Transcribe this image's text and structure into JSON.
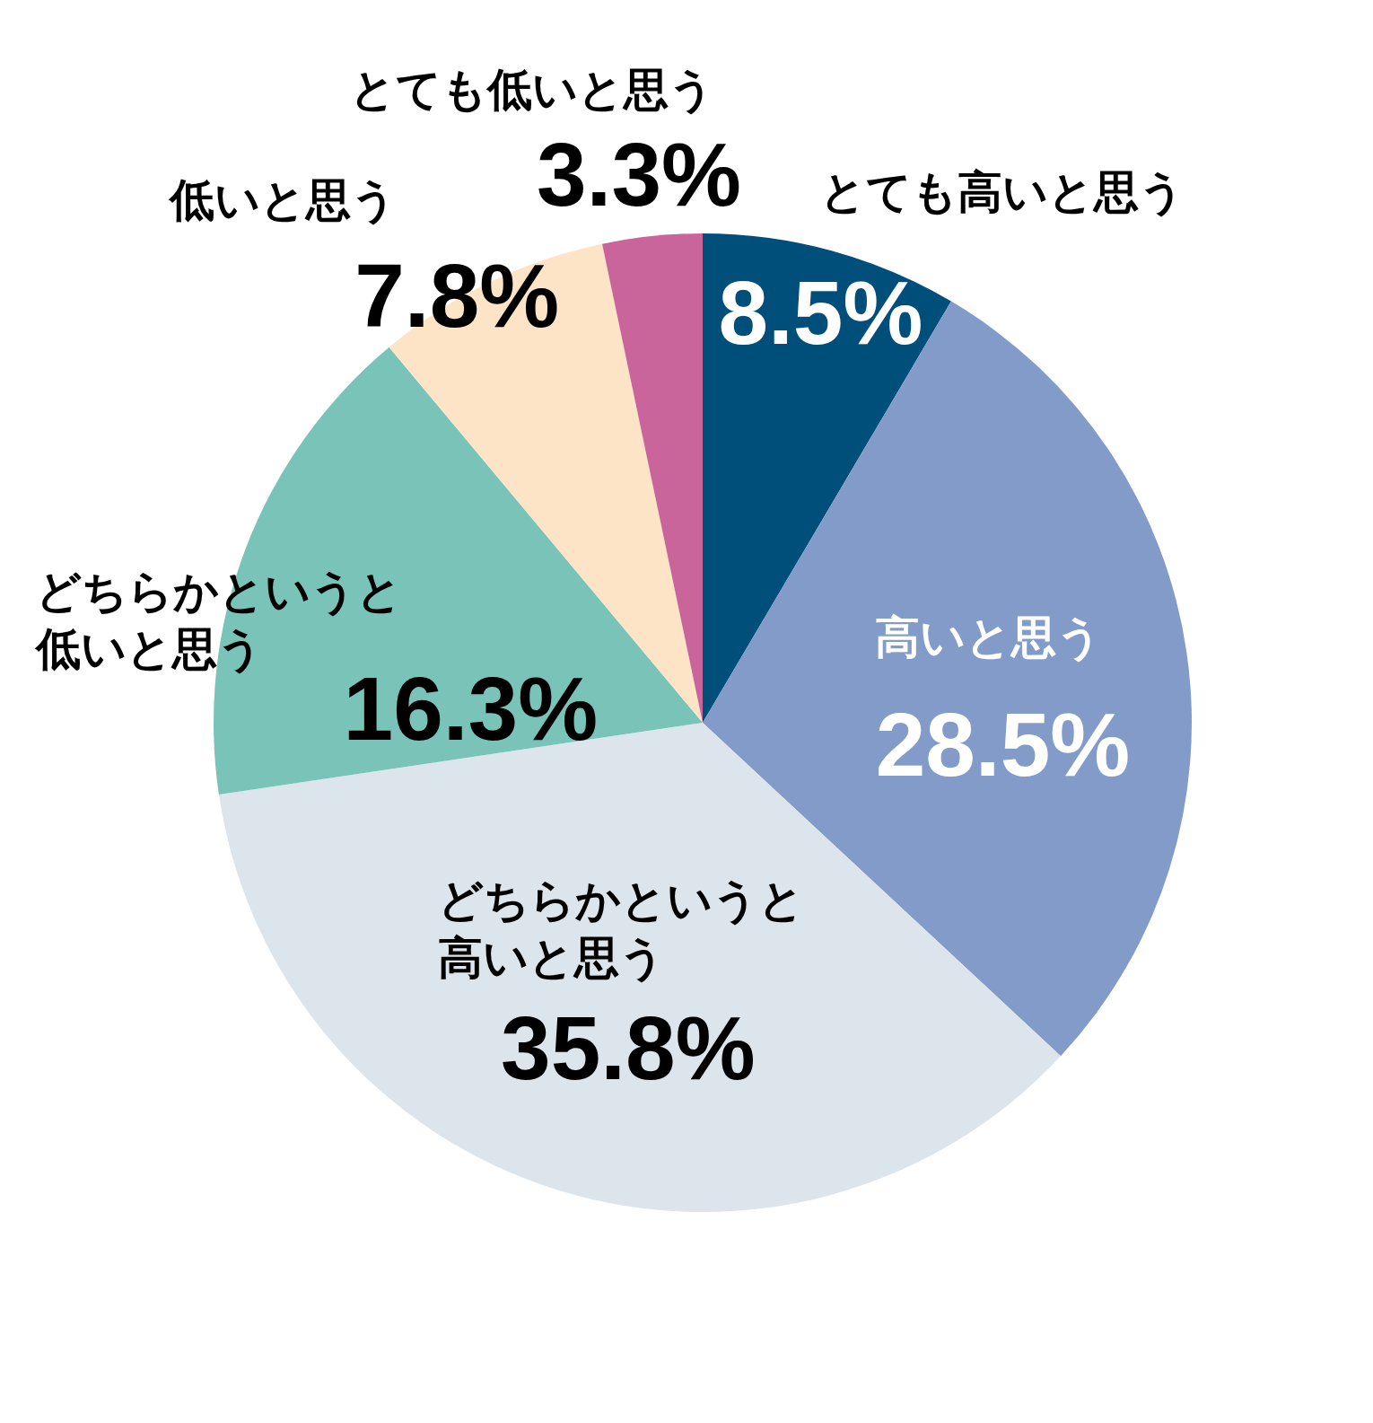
{
  "chart_data": {
    "type": "pie",
    "categories": [
      "とても高いと思う",
      "高いと思う",
      "どちらかというと高いと思う",
      "どちらかというと低いと思う",
      "低いと思う",
      "とても低いと思う"
    ],
    "values": [
      8.5,
      28.5,
      35.8,
      16.3,
      7.8,
      3.3
    ],
    "value_labels": [
      "8.5%",
      "28.5%",
      "35.8%",
      "16.3%",
      "7.8%",
      "3.3%"
    ],
    "colors": [
      "#004e7a",
      "#839bc8",
      "#dce4ec",
      "#79c3b9",
      "#fde4c7",
      "#ca659b"
    ]
  }
}
